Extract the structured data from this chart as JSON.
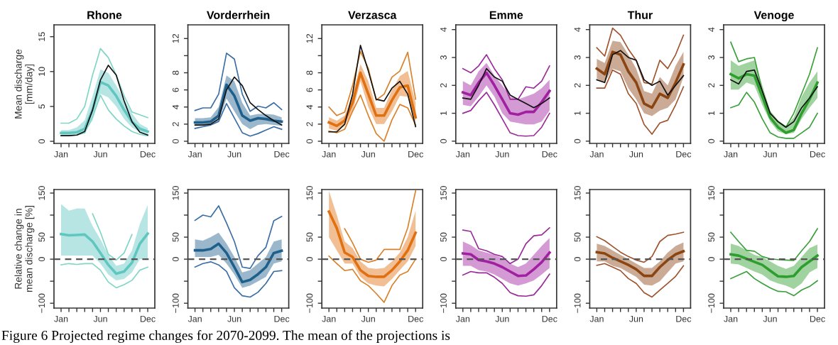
{
  "chart_data": [
    {
      "type": "line",
      "title": "Rhone",
      "ylabel": "Mean discharge\n[mm/day]",
      "categories": [
        "Jan",
        null,
        null,
        null,
        null,
        "Jun",
        null,
        null,
        null,
        null,
        null,
        "Dec"
      ],
      "ylim": [
        -0.3,
        16.7
      ],
      "yticks": [
        0,
        5,
        10,
        15
      ],
      "series": [
        {
          "color": "#5fc6c0",
          "values": [
            1.2,
            1.2,
            1.3,
            1.8,
            4.5,
            8.5,
            8.0,
            6.5,
            4.5,
            2.8,
            1.8,
            1.4
          ],
          "lower": [
            0.9,
            0.9,
            1.0,
            1.3,
            3.0,
            6.8,
            6.3,
            5.0,
            3.2,
            2.0,
            1.3,
            1.0
          ],
          "upper": [
            1.6,
            1.6,
            2.0,
            3.0,
            6.5,
            10.3,
            9.8,
            8.0,
            6.0,
            4.0,
            2.5,
            1.9
          ]
        },
        {
          "color": "#7fd6c6",
          "values": [
            2.6,
            2.6,
            3.2,
            5.0,
            9.5,
            13.3,
            12.0,
            9.5,
            6.5,
            4.2,
            3.8,
            3.4
          ]
        },
        {
          "color": "#7fd6c6",
          "values": [
            0.8,
            0.8,
            0.9,
            1.2,
            3.5,
            6.6,
            4.5,
            3.2,
            2.2,
            1.4,
            1.0,
            0.8
          ]
        },
        {
          "color": "#111111",
          "values": [
            0.8,
            0.8,
            0.9,
            1.4,
            4.5,
            8.8,
            10.9,
            9.5,
            5.8,
            2.8,
            1.3,
            0.9
          ]
        }
      ]
    },
    {
      "type": "line",
      "title": "Vorderrhein",
      "categories": [
        "Jan",
        null,
        null,
        null,
        null,
        "Jun",
        null,
        null,
        null,
        null,
        null,
        "Dec"
      ],
      "ylim": [
        -0.25,
        13.6
      ],
      "yticks": [
        0,
        2,
        4,
        6,
        8,
        {
          "value": 10,
          "label": null
        },
        12
      ],
      "series": [
        {
          "color": "#1f5f8b",
          "values": [
            2.2,
            2.2,
            2.3,
            3.0,
            6.6,
            5.3,
            3.0,
            2.4,
            2.7,
            2.6,
            2.4,
            2.3
          ],
          "lower": [
            1.8,
            1.8,
            1.9,
            2.3,
            5.0,
            3.5,
            2.0,
            1.4,
            1.9,
            2.0,
            1.9,
            1.8
          ],
          "upper": [
            2.7,
            2.7,
            2.8,
            4.0,
            7.7,
            7.0,
            4.5,
            3.0,
            3.2,
            3.2,
            3.1,
            2.8
          ]
        },
        {
          "color": "#3a6ea5",
          "values": [
            3.6,
            3.9,
            3.9,
            5.5,
            10.3,
            9.6,
            5.5,
            3.5,
            4.1,
            3.9,
            4.5,
            3.7
          ]
        },
        {
          "color": "#3a6ea5",
          "values": [
            1.5,
            1.7,
            1.9,
            2.3,
            4.4,
            2.7,
            1.0,
            0.6,
            0.9,
            1.3,
            1.7,
            1.4
          ]
        },
        {
          "color": "#111111",
          "values": [
            1.9,
            1.9,
            2.0,
            2.6,
            6.0,
            7.5,
            6.5,
            4.5,
            3.7,
            3.0,
            2.4,
            1.9
          ]
        }
      ]
    },
    {
      "type": "line",
      "title": "Verzasca",
      "categories": [
        "Jan",
        null,
        null,
        null,
        null,
        "Jun",
        null,
        null,
        null,
        null,
        null,
        "Dec"
      ],
      "ylim": [
        -0.25,
        13.6
      ],
      "yticks": [
        0,
        2,
        4,
        6,
        8,
        {
          "value": 10,
          "label": null
        },
        12
      ],
      "series": [
        {
          "color": "#e07010",
          "values": [
            2.2,
            1.8,
            2.4,
            4.5,
            8.0,
            5.5,
            3.0,
            3.0,
            4.8,
            6.3,
            6.5,
            2.8
          ],
          "lower": [
            1.5,
            1.2,
            1.8,
            3.4,
            7.0,
            4.0,
            2.0,
            2.0,
            3.5,
            5.3,
            5.2,
            2.2
          ],
          "upper": [
            2.8,
            2.4,
            3.0,
            5.5,
            9.0,
            7.0,
            3.9,
            3.9,
            6.0,
            7.6,
            8.2,
            4.5
          ]
        },
        {
          "color": "#d9822b",
          "values": [
            4.0,
            3.0,
            3.4,
            6.5,
            10.5,
            8.5,
            4.8,
            5.5,
            7.5,
            8.2,
            10.4,
            4.9
          ]
        },
        {
          "color": "#d9822b",
          "values": [
            1.2,
            1.0,
            1.4,
            3.5,
            5.4,
            3.0,
            0.9,
            0.0,
            2.5,
            4.3,
            3.9,
            1.9
          ]
        },
        {
          "color": "#111111",
          "values": [
            1.1,
            1.1,
            2.0,
            5.5,
            11.2,
            8.2,
            4.9,
            4.7,
            6.2,
            7.0,
            5.5,
            1.7
          ]
        }
      ]
    },
    {
      "type": "line",
      "title": "Emme",
      "categories": [
        "Jan",
        null,
        null,
        null,
        null,
        "Jun",
        null,
        null,
        null,
        null,
        null,
        "Dec"
      ],
      "ylim": [
        -0.08,
        4.17
      ],
      "yticks": [
        0,
        1,
        2,
        3,
        4
      ],
      "series": [
        {
          "color": "#a020a0",
          "values": [
            1.75,
            1.65,
            2.1,
            2.45,
            2.0,
            1.5,
            1.0,
            0.95,
            1.05,
            1.05,
            1.4,
            1.8
          ],
          "lower": [
            1.3,
            1.25,
            1.6,
            2.0,
            1.6,
            1.0,
            0.7,
            0.65,
            0.6,
            0.6,
            0.7,
            1.1
          ],
          "upper": [
            2.15,
            2.0,
            2.5,
            2.8,
            2.35,
            2.0,
            1.6,
            1.5,
            1.6,
            1.7,
            1.9,
            2.2
          ]
        },
        {
          "color": "#9a2a9a",
          "values": [
            2.6,
            2.45,
            2.7,
            3.1,
            2.6,
            2.2,
            1.5,
            1.5,
            1.95,
            1.9,
            2.15,
            2.7
          ]
        },
        {
          "color": "#9a2a9a",
          "values": [
            1.0,
            1.1,
            1.45,
            1.75,
            1.3,
            0.8,
            0.3,
            0.2,
            0.18,
            0.2,
            0.5,
            1.0
          ]
        },
        {
          "color": "#111111",
          "values": [
            1.55,
            1.5,
            2.0,
            2.6,
            2.3,
            2.15,
            1.65,
            1.5,
            1.35,
            1.2,
            1.35,
            1.55
          ]
        }
      ]
    },
    {
      "type": "line",
      "title": "Thur",
      "categories": [
        "Jan",
        null,
        null,
        null,
        null,
        "Jun",
        null,
        null,
        null,
        null,
        null,
        "Dec"
      ],
      "ylim": [
        -0.08,
        4.17
      ],
      "yticks": [
        0,
        1,
        2,
        3,
        4
      ],
      "series": [
        {
          "color": "#8b4513",
          "values": [
            2.6,
            2.4,
            3.2,
            3.1,
            2.5,
            2.1,
            1.35,
            1.2,
            1.7,
            1.55,
            2.1,
            2.75
          ],
          "lower": [
            2.25,
            2.1,
            2.6,
            2.5,
            1.9,
            1.5,
            1.0,
            0.9,
            1.1,
            1.2,
            1.5,
            2.3
          ],
          "upper": [
            2.95,
            2.8,
            3.6,
            3.55,
            3.1,
            2.6,
            1.8,
            1.7,
            2.3,
            2.0,
            2.7,
            3.2
          ]
        },
        {
          "color": "#a0522d",
          "values": [
            3.35,
            3.05,
            4.05,
            3.8,
            3.3,
            2.9,
            2.1,
            2.05,
            2.9,
            2.6,
            3.1,
            3.8
          ]
        },
        {
          "color": "#a0522d",
          "values": [
            1.9,
            1.9,
            2.55,
            2.4,
            1.7,
            1.35,
            0.6,
            0.25,
            0.65,
            0.75,
            1.3,
            1.95
          ]
        },
        {
          "color": "#111111",
          "values": [
            2.2,
            2.1,
            3.1,
            3.25,
            3.0,
            2.9,
            2.2,
            2.0,
            2.15,
            1.65,
            2.0,
            2.35
          ]
        }
      ]
    },
    {
      "type": "line",
      "title": "Venoge",
      "categories": [
        "Jan",
        null,
        null,
        null,
        null,
        "Jun",
        null,
        null,
        null,
        null,
        null,
        "Dec"
      ],
      "ylim": [
        -0.08,
        4.17
      ],
      "yticks": [
        0,
        1,
        2,
        3,
        4
      ],
      "series": [
        {
          "color": "#2e9e2e",
          "values": [
            2.4,
            2.25,
            2.4,
            2.35,
            1.6,
            0.85,
            0.5,
            0.3,
            0.4,
            1.0,
            1.5,
            2.1
          ],
          "lower": [
            1.85,
            1.85,
            2.1,
            2.0,
            1.3,
            0.7,
            0.35,
            0.25,
            0.3,
            0.8,
            1.2,
            1.55
          ],
          "upper": [
            2.9,
            2.7,
            2.8,
            2.9,
            2.0,
            1.1,
            0.75,
            0.55,
            0.85,
            1.6,
            2.1,
            2.5
          ]
        },
        {
          "color": "#3aa03a",
          "values": [
            3.55,
            2.85,
            2.95,
            3.0,
            1.8,
            1.0,
            0.7,
            0.5,
            1.0,
            1.7,
            2.4,
            3.35
          ]
        },
        {
          "color": "#3aa03a",
          "values": [
            1.2,
            1.3,
            1.75,
            1.4,
            0.8,
            0.3,
            0.15,
            0.1,
            0.1,
            0.3,
            0.5,
            1.0
          ]
        },
        {
          "color": "#111111",
          "values": [
            2.2,
            2.05,
            2.5,
            2.55,
            1.8,
            1.0,
            0.7,
            0.5,
            0.7,
            1.2,
            1.55,
            1.95
          ]
        }
      ]
    },
    {
      "type": "line",
      "ylabel": "Relative change in\nmean discharge [%]",
      "annotations": [
        "Figure 6 Projected regime changes for 2070-2099. The mean of the projections is"
      ],
      "categories": [
        "Jan",
        null,
        null,
        null,
        null,
        "Jun",
        null,
        null,
        null,
        null,
        null,
        "Dec"
      ],
      "ylim": [
        -111,
        158
      ],
      "yticks": [
        {
          "value": -100,
          "label": "−100"
        },
        {
          "value": -50,
          "label": null
        },
        0,
        50,
        {
          "value": 100,
          "label": null
        },
        150
      ],
      "ref_lines": [
        {
          "axis": "y",
          "value": 0,
          "color": "#555555",
          "line_style": "dashed"
        }
      ],
      "series": [
        {
          "color": "#5fc6c0",
          "values": [
            57,
            54,
            55,
            56,
            40,
            14,
            -13,
            -33,
            -28,
            -8,
            35,
            58
          ],
          "lower": [
            8,
            8,
            8,
            8,
            8,
            -10,
            -35,
            -48,
            -45,
            -30,
            0,
            0
          ],
          "upper": [
            125,
            110,
            115,
            115,
            75,
            45,
            10,
            -15,
            -10,
            20,
            80,
            123
          ]
        },
        {
          "color": "#7fd6c6",
          "values": [
            null,
            null,
            null,
            null,
            103,
            61,
            11,
            -2,
            14,
            56,
            null,
            null
          ]
        },
        {
          "color": "#7fd6c6",
          "values": [
            -13,
            -10,
            -12,
            -10,
            -10,
            -25,
            -52,
            -65,
            -58,
            -48,
            -25,
            -18
          ]
        }
      ]
    },
    {
      "type": "line",
      "categories": [
        "Jan",
        null,
        null,
        null,
        null,
        "Jun",
        null,
        null,
        null,
        null,
        null,
        "Dec"
      ],
      "ylim": [
        -111,
        158
      ],
      "yticks": [
        {
          "value": -100,
          "label": "−100"
        },
        {
          "value": -50,
          "label": null
        },
        0,
        50,
        {
          "value": 100,
          "label": null
        },
        150
      ],
      "ref_lines": [
        {
          "axis": "y",
          "value": 0,
          "color": "#555555",
          "line_style": "dashed"
        }
      ],
      "series": [
        {
          "color": "#1f5f8b",
          "values": [
            20,
            20,
            23,
            35,
            14,
            -18,
            -52,
            -47,
            -34,
            -18,
            14,
            19
          ],
          "lower": [
            5,
            5,
            5,
            10,
            -10,
            -35,
            -65,
            -60,
            -50,
            -40,
            -10,
            -5
          ],
          "upper": [
            45,
            42,
            50,
            60,
            35,
            5,
            -30,
            -25,
            -10,
            5,
            40,
            45
          ]
        },
        {
          "color": "#3a6ea5",
          "values": [
            88,
            100,
            96,
            121,
            82,
            40,
            -18,
            -21,
            8,
            27,
            87,
            97
          ]
        },
        {
          "color": "#3a6ea5",
          "values": [
            -18,
            -10,
            -6,
            -13,
            -28,
            -65,
            -83,
            -86,
            -75,
            -55,
            -28,
            -26
          ]
        }
      ]
    },
    {
      "type": "line",
      "categories": [
        "Jan",
        null,
        null,
        null,
        null,
        "Jun",
        null,
        null,
        null,
        null,
        null,
        "Dec"
      ],
      "ylim": [
        -111,
        158
      ],
      "yticks": [
        {
          "value": -100,
          "label": "−100"
        },
        {
          "value": -50,
          "label": null
        },
        0,
        50,
        {
          "value": 100,
          "label": null
        },
        150
      ],
      "ref_lines": [
        {
          "axis": "y",
          "value": 0,
          "color": "#555555",
          "line_style": "dashed"
        }
      ],
      "series": [
        {
          "color": "#e07010",
          "values": [
            108,
            70,
            15,
            5,
            -25,
            -38,
            -40,
            -40,
            -25,
            -5,
            20,
            60
          ],
          "lower": [
            50,
            20,
            -10,
            -10,
            -40,
            -55,
            -60,
            -62,
            -45,
            -25,
            -5,
            30
          ],
          "upper": [
            155,
            100,
            40,
            25,
            -5,
            -20,
            -22,
            -20,
            -5,
            15,
            50,
            110
          ]
        },
        {
          "color": "#d9822b",
          "values": [
            null,
            null,
            69,
            37,
            0,
            -7,
            -2,
            22,
            22,
            22,
            71,
            155
          ]
        },
        {
          "color": "#d9822b",
          "values": [
            7,
            -10,
            -26,
            -23,
            -49,
            -60,
            -78,
            -98,
            -60,
            -36,
            -28,
            0
          ]
        }
      ]
    },
    {
      "type": "line",
      "categories": [
        "Jan",
        null,
        null,
        null,
        null,
        "Jun",
        null,
        null,
        null,
        null,
        null,
        "Dec"
      ],
      "ylim": [
        -111,
        158
      ],
      "yticks": [
        {
          "value": -100,
          "label": "−100"
        },
        {
          "value": -50,
          "label": null
        },
        0,
        50,
        {
          "value": 100,
          "label": null
        },
        150
      ],
      "ref_lines": [
        {
          "axis": "y",
          "value": 0,
          "color": "#555555",
          "line_style": "dashed"
        }
      ],
      "series": [
        {
          "color": "#a020a0",
          "values": [
            13,
            11,
            -2,
            -5,
            -10,
            -18,
            -28,
            -38,
            -37,
            -23,
            -7,
            15
          ],
          "lower": [
            -15,
            -15,
            -25,
            -28,
            -35,
            -45,
            -55,
            -60,
            -55,
            -48,
            -35,
            -20
          ],
          "upper": [
            40,
            32,
            20,
            15,
            10,
            2,
            -10,
            -18,
            -10,
            10,
            30,
            48
          ]
        },
        {
          "color": "#9a2a9a",
          "values": [
            66,
            63,
            24,
            19,
            11,
            6,
            -10,
            0,
            35,
            53,
            55,
            71
          ]
        },
        {
          "color": "#9a2a9a",
          "values": [
            -36,
            -28,
            -31,
            -31,
            -41,
            -55,
            -76,
            -83,
            -84,
            -81,
            -60,
            -34
          ]
        }
      ]
    },
    {
      "type": "line",
      "categories": [
        "Jan",
        null,
        null,
        null,
        null,
        "Jun",
        null,
        null,
        null,
        null,
        null,
        "Dec"
      ],
      "ylim": [
        -111,
        158
      ],
      "yticks": [
        {
          "value": -100,
          "label": "−100"
        },
        {
          "value": -50,
          "label": null
        },
        0,
        50,
        {
          "value": 100,
          "label": null
        },
        150
      ],
      "ref_lines": [
        {
          "axis": "y",
          "value": 0,
          "color": "#555555",
          "line_style": "dashed"
        }
      ],
      "series": [
        {
          "color": "#8b4513",
          "values": [
            16,
            13,
            3,
            -5,
            -13,
            -23,
            -38,
            -38,
            -18,
            -2,
            11,
            18
          ],
          "lower": [
            -5,
            -5,
            -15,
            -20,
            -30,
            -40,
            -58,
            -60,
            -50,
            -30,
            -10,
            -5
          ],
          "upper": [
            35,
            30,
            20,
            10,
            0,
            -10,
            -20,
            -20,
            -5,
            15,
            30,
            38
          ]
        },
        {
          "color": "#a0522d",
          "values": [
            51,
            42,
            29,
            16,
            6,
            -2,
            -7,
            6,
            40,
            54,
            57,
            61
          ]
        },
        {
          "color": "#a0522d",
          "values": [
            -14,
            -10,
            -18,
            -26,
            -44,
            -55,
            -76,
            -86,
            -70,
            -55,
            -39,
            -15
          ]
        }
      ]
    },
    {
      "type": "line",
      "categories": [
        "Jan",
        null,
        null,
        null,
        null,
        "Jun",
        null,
        null,
        null,
        null,
        null,
        "Dec"
      ],
      "ylim": [
        -111,
        158
      ],
      "yticks": [
        {
          "value": -100,
          "label": "−100"
        },
        {
          "value": -50,
          "label": null
        },
        0,
        50,
        {
          "value": 100,
          "label": null
        },
        150
      ],
      "ref_lines": [
        {
          "axis": "y",
          "value": 0,
          "color": "#555555",
          "line_style": "dashed"
        }
      ],
      "series": [
        {
          "color": "#2e9e2e",
          "values": [
            11,
            8,
            1,
            -6,
            -13,
            -26,
            -39,
            -40,
            -38,
            -18,
            -5,
            8
          ],
          "lower": [
            -10,
            -12,
            -20,
            -28,
            -35,
            -48,
            -55,
            -60,
            -68,
            -55,
            -30,
            -20
          ],
          "upper": [
            35,
            30,
            20,
            10,
            5,
            -5,
            -15,
            -22,
            -15,
            5,
            25,
            33
          ]
        },
        {
          "color": "#3aa03a",
          "values": [
            61,
            40,
            20,
            18,
            6,
            1,
            -1,
            -2,
            -3,
            19,
            40,
            69
          ]
        },
        {
          "color": "#3aa03a",
          "values": [
            -44,
            -36,
            -28,
            -44,
            -55,
            -65,
            -73,
            -74,
            -83,
            -70,
            -62,
            -49
          ]
        }
      ]
    }
  ]
}
